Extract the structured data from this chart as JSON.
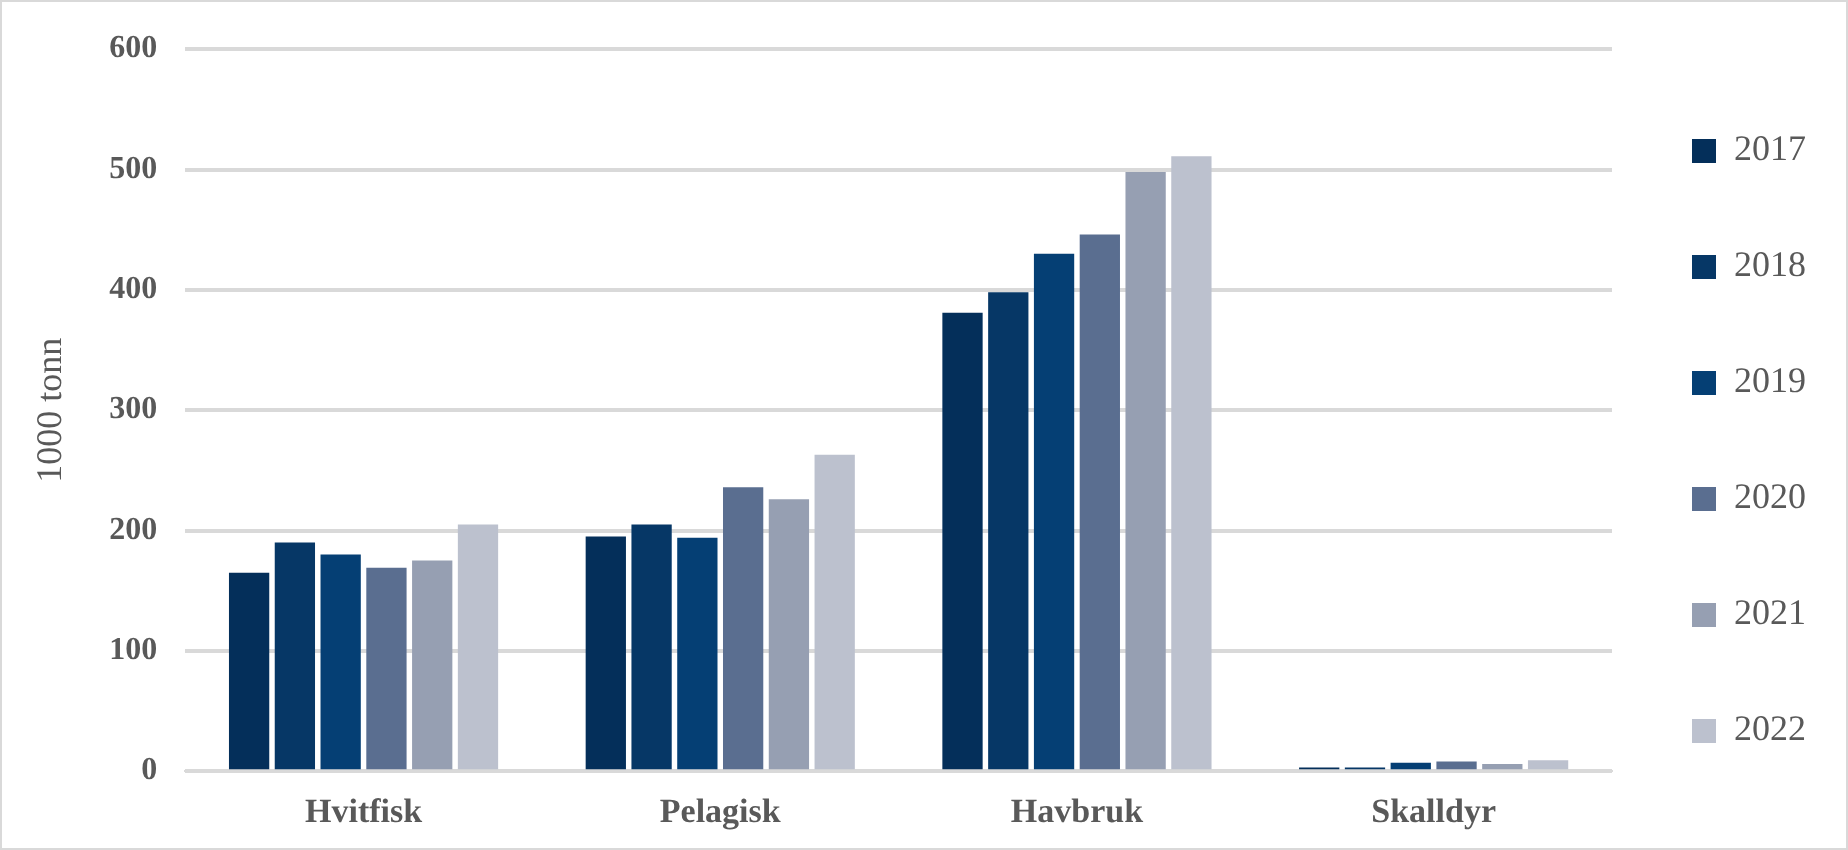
{
  "chart_data": {
    "type": "bar",
    "ylabel": "1000 tonn",
    "categories": [
      "Hvitfisk",
      "Pelagisk",
      "Havbruk",
      "Skalldyr"
    ],
    "series": [
      {
        "name": "2017",
        "color": "#042f5a",
        "values": [
          165,
          195,
          381,
          3
        ]
      },
      {
        "name": "2018",
        "color": "#063766",
        "values": [
          190,
          205,
          398,
          3
        ]
      },
      {
        "name": "2019",
        "color": "#053f74",
        "values": [
          180,
          194,
          430,
          7
        ]
      },
      {
        "name": "2020",
        "color": "#5a6e90",
        "values": [
          169,
          236,
          446,
          8
        ]
      },
      {
        "name": "2021",
        "color": "#969fb2",
        "values": [
          175,
          226,
          498,
          6
        ]
      },
      {
        "name": "2022",
        "color": "#bcc1ce",
        "values": [
          205,
          263,
          511,
          9
        ]
      }
    ],
    "ylim": [
      0,
      600
    ],
    "yticks": [
      0,
      100,
      200,
      300,
      400,
      500,
      600
    ],
    "grid": "y",
    "legend": "right"
  }
}
